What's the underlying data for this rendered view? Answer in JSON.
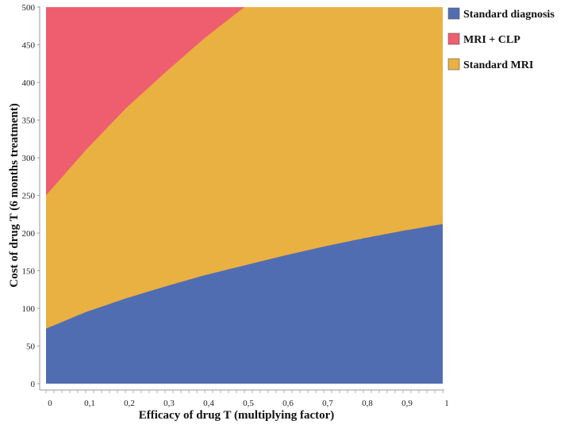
{
  "chart_data": {
    "type": "area",
    "title": "",
    "xlabel": "Efficacy of drug T (multiplying factor)",
    "ylabel": "Cost of drug T (6 months treatment)",
    "xlim": [
      0,
      1
    ],
    "ylim": [
      0,
      500
    ],
    "x_ticks": [
      "0",
      "0,1",
      "0,2",
      "0,3",
      "0,4",
      "0,5",
      "0,6",
      "0,7",
      "0,8",
      "0,9",
      "1"
    ],
    "y_ticks": [
      "0",
      "50",
      "100",
      "150",
      "200",
      "250",
      "300",
      "350",
      "400",
      "450",
      "500"
    ],
    "grid": false,
    "legend_position": "top-right",
    "x": [
      0,
      0.1,
      0.2,
      0.3,
      0.4,
      0.5,
      0.6,
      0.7,
      0.8,
      0.9,
      1.0
    ],
    "series": [
      {
        "name": "Standard diagnosis",
        "color": "#516db2",
        "upper_boundary": [
          73,
          95,
          113,
          129,
          144,
          157,
          170,
          182,
          193,
          203,
          212
        ]
      },
      {
        "name": "MRI + CLP",
        "color": "#ee5e6f",
        "lower_boundary": [
          250,
          310,
          365,
          413,
          459,
          500,
          null,
          null,
          null,
          null,
          null
        ]
      },
      {
        "name": "Standard MRI",
        "color": "#e9b042",
        "region": "between Standard diagnosis and MRI + CLP"
      }
    ]
  }
}
